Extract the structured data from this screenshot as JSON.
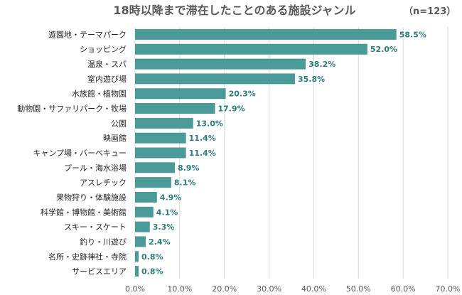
{
  "chart_data": {
    "type": "bar",
    "orientation": "horizontal",
    "title": "18時以降まで滞在したことのある施設ジャンル",
    "note": "（n=123）",
    "categories": [
      "遊園地・テーマパーク",
      "ショッピング",
      "温泉・スパ",
      "室内遊び場",
      "水族館・植物園",
      "動物園・サファリパーク・牧場",
      "公園",
      "映画館",
      "キャンプ場・バーベキュー",
      "プール・海水浴場",
      "アスレチック",
      "果物狩り・体験施設",
      "科学館・博物館・美術館",
      "スキー・スケート",
      "釣り・川遊び",
      "名所・史跡神社・寺院",
      "サービスエリア"
    ],
    "values": [
      58.5,
      52.0,
      38.2,
      35.8,
      20.3,
      17.9,
      13.0,
      11.4,
      11.4,
      8.9,
      8.1,
      4.9,
      4.1,
      3.3,
      2.4,
      0.8,
      0.8
    ],
    "value_labels": [
      "58.5%",
      "52.0%",
      "38.2%",
      "35.8%",
      "20.3%",
      "17.9%",
      "13.0%",
      "11.4%",
      "11.4%",
      "8.9%",
      "8.1%",
      "4.9%",
      "4.1%",
      "3.3%",
      "2.4%",
      "0.8%",
      "0.8%"
    ],
    "xlim": [
      0,
      70
    ],
    "xticks": [
      0,
      10,
      20,
      30,
      40,
      50,
      60,
      70
    ],
    "xtick_labels": [
      "0.0%",
      "10.0%",
      "20.0%",
      "30.0%",
      "40.0%",
      "50.0%",
      "60.0%",
      "70.0%"
    ],
    "grid": true,
    "legend": "none",
    "colors": {
      "bar": "#4a9a98",
      "value_label": "#2e7d7a"
    }
  }
}
